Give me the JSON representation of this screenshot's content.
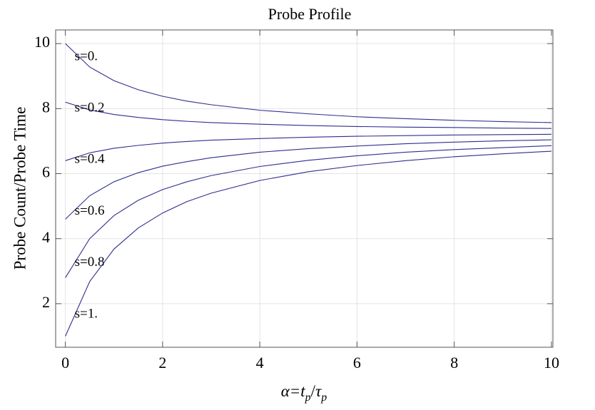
{
  "chart_data": {
    "type": "line",
    "title": "Probe Profile",
    "x_label": [
      "α=",
      "t",
      "p",
      "/",
      "τ",
      "p"
    ],
    "y_label": "Probe Count/Probe Time",
    "x": [
      0,
      0.5,
      1,
      1.5,
      2,
      2.5,
      3,
      4,
      5,
      6,
      7,
      8,
      9,
      10
    ],
    "series": [
      {
        "name": "s=0.",
        "color": "#2e2e8f",
        "values": [
          10,
          9.28,
          8.86,
          8.58,
          8.38,
          8.23,
          8.12,
          7.95,
          7.84,
          7.75,
          7.69,
          7.64,
          7.6,
          7.57
        ]
      },
      {
        "name": "s=0.2",
        "color": "#2e2e8f",
        "values": [
          8.2,
          7.96,
          7.82,
          7.73,
          7.66,
          7.61,
          7.57,
          7.52,
          7.48,
          7.45,
          7.43,
          7.42,
          7.4,
          7.39
        ]
      },
      {
        "name": "s=0.4",
        "color": "#2e2e8f",
        "values": [
          6.4,
          6.64,
          6.78,
          6.87,
          6.94,
          6.99,
          7.03,
          7.08,
          7.12,
          7.15,
          7.17,
          7.19,
          7.2,
          7.21
        ]
      },
      {
        "name": "s=0.6",
        "color": "#2e2e8f",
        "values": [
          4.6,
          5.32,
          5.75,
          6.03,
          6.23,
          6.37,
          6.49,
          6.66,
          6.77,
          6.85,
          6.92,
          6.97,
          7.01,
          7.04
        ]
      },
      {
        "name": "s=0.8",
        "color": "#2e2e8f",
        "values": [
          2.8,
          4.0,
          4.71,
          5.18,
          5.51,
          5.75,
          5.94,
          6.22,
          6.41,
          6.55,
          6.66,
          6.74,
          6.8,
          6.86
        ]
      },
      {
        "name": "s=1.",
        "color": "#2e2e8f",
        "values": [
          1,
          2.68,
          3.68,
          4.33,
          4.79,
          5.14,
          5.4,
          5.79,
          6.06,
          6.25,
          6.4,
          6.52,
          6.61,
          6.69
        ]
      }
    ],
    "xlim": [
      -0.2,
      10.03
    ],
    "ylim": [
      0.66,
      10.42
    ],
    "xticks": [
      0,
      2,
      4,
      6,
      8,
      10
    ],
    "yticks": [
      2,
      4,
      6,
      8,
      10
    ],
    "grid": true
  }
}
